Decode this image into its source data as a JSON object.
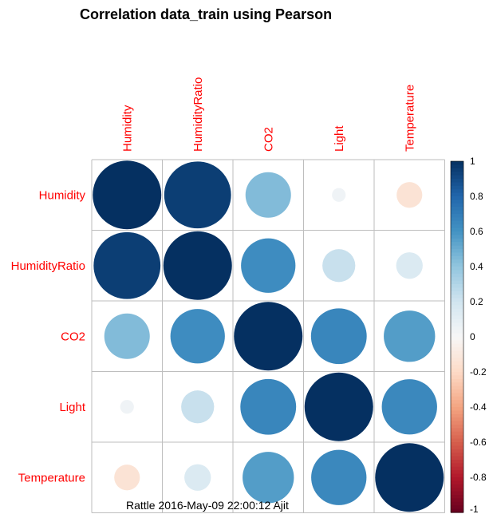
{
  "title": "Correlation data_train using Pearson",
  "footer": "Rattle 2016-May-09 22:00:12 Ajit",
  "chart_data": {
    "type": "heatmap",
    "method": "circle",
    "variables": [
      "Humidity",
      "HumidityRatio",
      "CO2",
      "Light",
      "Temperature"
    ],
    "matrix": [
      [
        1.0,
        0.95,
        0.44,
        0.04,
        -0.14
      ],
      [
        0.95,
        1.0,
        0.63,
        0.23,
        0.15
      ],
      [
        0.44,
        0.63,
        1.0,
        0.66,
        0.56
      ],
      [
        0.04,
        0.23,
        0.66,
        1.0,
        0.65
      ],
      [
        -0.14,
        0.15,
        0.56,
        0.65,
        1.0
      ]
    ],
    "colorbar": {
      "range": [
        -1,
        1
      ],
      "ticks": [
        "1",
        "0.8",
        "0.6",
        "0.4",
        "0.2",
        "0",
        "-0.2",
        "-0.4",
        "-0.6",
        "-0.8",
        "-1"
      ]
    },
    "label_color": "#ff0000",
    "grid": true
  }
}
